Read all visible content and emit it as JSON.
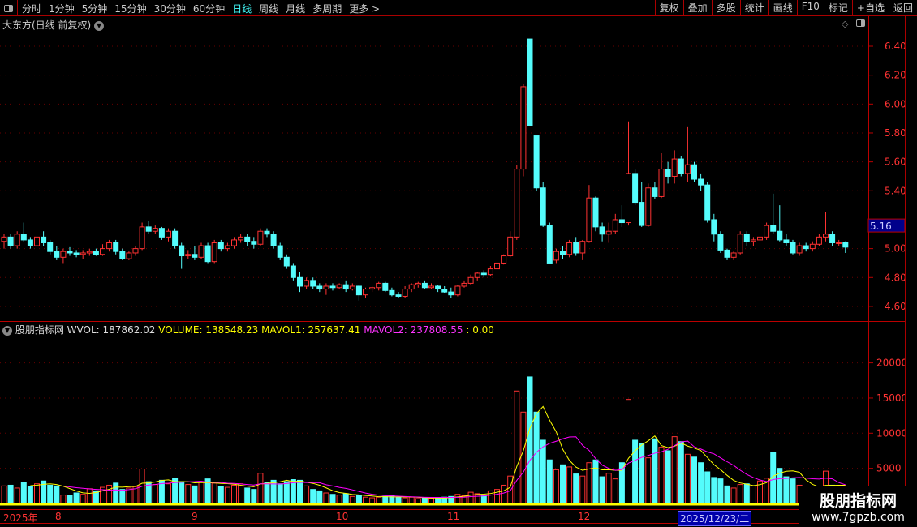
{
  "toolbar": {
    "periods": [
      "分时",
      "1分钟",
      "5分钟",
      "15分钟",
      "30分钟",
      "60分钟",
      "日线",
      "周线",
      "月线",
      "多周期",
      "更多 >"
    ],
    "active": "日线",
    "buttons": [
      "复权",
      "叠加",
      "多股",
      "统计",
      "画线",
      "F10",
      "标记",
      "+自选",
      "返回"
    ]
  },
  "chart_title": "大东方(日线 前复权)",
  "price_axis": {
    "ticks": [
      "6.40",
      "6.20",
      "6.00",
      "5.80",
      "5.60",
      "5.40",
      "5.00",
      "4.80",
      "4.60"
    ],
    "current": "5.16"
  },
  "indicator": {
    "name": "股朋指标网",
    "wvol": "WVOL: 187862.02",
    "volume": "VOLUME: 138548.23",
    "mavol1": "MAVOL1: 257637.41",
    "mavol2": "MAVOL2: 237808.55",
    "extra": ": 0.00"
  },
  "volume_axis": {
    "ticks": [
      "20000",
      "15000",
      "10000",
      "5000"
    ]
  },
  "x_axis": {
    "labels": [
      "2025年",
      "8",
      "9",
      "10",
      "11",
      "12"
    ],
    "cursor_date": "2025/12/23/二"
  },
  "watermark": {
    "line1": "股朋指标网",
    "line2": "www.7gpzb.com"
  },
  "colors": {
    "up": "#ff3232",
    "down": "#54fcfc",
    "mavol1": "#ffff00",
    "mavol2": "#ff00ff",
    "active_tab": "#44ffff"
  },
  "chart_data": {
    "type": "candlestick",
    "price_range": [
      4.6,
      6.4
    ],
    "volume_range": [
      0,
      20000
    ],
    "ohlcv": [
      [
        5.05,
        5.1,
        5.0,
        5.08,
        2500
      ],
      [
        5.08,
        5.1,
        5.0,
        5.02,
        2600
      ],
      [
        5.02,
        5.12,
        5.0,
        5.1,
        2200
      ],
      [
        5.1,
        5.18,
        5.05,
        5.06,
        3000
      ],
      [
        5.06,
        5.08,
        5.0,
        5.02,
        2400
      ],
      [
        5.02,
        5.09,
        5.0,
        5.08,
        2800
      ],
      [
        5.08,
        5.12,
        5.02,
        5.04,
        3200
      ],
      [
        5.04,
        5.06,
        4.96,
        4.98,
        2600
      ],
      [
        4.98,
        5.02,
        4.92,
        4.94,
        2500
      ],
      [
        4.94,
        5.0,
        4.9,
        4.98,
        1200
      ],
      [
        4.98,
        5.01,
        4.95,
        4.97,
        1100
      ],
      [
        4.97,
        4.99,
        4.94,
        4.96,
        1500
      ],
      [
        4.96,
        4.99,
        4.93,
        4.97,
        1300
      ],
      [
        4.97,
        5.0,
        4.95,
        4.98,
        2100
      ],
      [
        4.98,
        5.0,
        4.95,
        4.96,
        1800
      ],
      [
        4.96,
        5.03,
        4.95,
        5.0,
        2300
      ],
      [
        5.0,
        5.06,
        4.98,
        5.04,
        2600
      ],
      [
        5.04,
        5.06,
        4.96,
        4.98,
        2900
      ],
      [
        4.98,
        5.0,
        4.92,
        4.93,
        2000
      ],
      [
        4.93,
        4.98,
        4.92,
        4.97,
        2200
      ],
      [
        4.97,
        5.02,
        4.95,
        5.0,
        2400
      ],
      [
        5.0,
        5.18,
        4.99,
        5.15,
        4900
      ],
      [
        5.15,
        5.19,
        5.1,
        5.12,
        3100
      ],
      [
        5.12,
        5.16,
        5.1,
        5.14,
        2700
      ],
      [
        5.14,
        5.15,
        5.06,
        5.08,
        3300
      ],
      [
        5.08,
        5.14,
        5.05,
        5.12,
        2800
      ],
      [
        5.12,
        5.14,
        5.0,
        5.02,
        3600
      ],
      [
        5.02,
        5.04,
        4.86,
        4.95,
        3100
      ],
      [
        4.95,
        4.99,
        4.93,
        4.96,
        2700
      ],
      [
        4.96,
        5.02,
        4.92,
        4.94,
        2500
      ],
      [
        4.94,
        5.04,
        4.93,
        5.02,
        3000
      ],
      [
        5.02,
        5.04,
        4.9,
        4.91,
        3500
      ],
      [
        4.91,
        5.06,
        4.9,
        5.04,
        2900
      ],
      [
        5.04,
        5.06,
        4.98,
        5.0,
        2400
      ],
      [
        5.0,
        5.04,
        4.98,
        5.02,
        2300
      ],
      [
        5.02,
        5.08,
        5.0,
        5.06,
        2600
      ],
      [
        5.06,
        5.1,
        5.04,
        5.08,
        2800
      ],
      [
        5.08,
        5.1,
        5.02,
        5.05,
        2200
      ],
      [
        5.05,
        5.08,
        5.0,
        5.03,
        2000
      ],
      [
        5.03,
        5.14,
        5.02,
        5.12,
        4300
      ],
      [
        5.12,
        5.14,
        5.08,
        5.1,
        3000
      ],
      [
        5.1,
        5.12,
        5.0,
        5.02,
        3300
      ],
      [
        5.02,
        5.04,
        4.92,
        4.94,
        2800
      ],
      [
        4.94,
        4.96,
        4.86,
        4.88,
        3100
      ],
      [
        4.88,
        4.9,
        4.78,
        4.8,
        3400
      ],
      [
        4.8,
        4.84,
        4.7,
        4.74,
        3300
      ],
      [
        4.74,
        4.8,
        4.72,
        4.78,
        2500
      ],
      [
        4.78,
        4.8,
        4.72,
        4.74,
        2000
      ],
      [
        4.74,
        4.76,
        4.7,
        4.72,
        1800
      ],
      [
        4.72,
        4.76,
        4.68,
        4.74,
        1500
      ],
      [
        4.74,
        4.76,
        4.71,
        4.73,
        1300
      ],
      [
        4.73,
        4.76,
        4.72,
        4.75,
        1200
      ],
      [
        4.75,
        4.78,
        4.7,
        4.72,
        1400
      ],
      [
        4.72,
        4.76,
        4.71,
        4.74,
        1000
      ],
      [
        4.74,
        4.75,
        4.64,
        4.68,
        1200
      ],
      [
        4.68,
        4.73,
        4.66,
        4.72,
        900
      ],
      [
        4.72,
        4.74,
        4.7,
        4.73,
        800
      ],
      [
        4.73,
        4.77,
        4.71,
        4.76,
        900
      ],
      [
        4.76,
        4.77,
        4.7,
        4.71,
        1000
      ],
      [
        4.71,
        4.73,
        4.67,
        4.68,
        1100
      ],
      [
        4.68,
        4.7,
        4.66,
        4.67,
        900
      ],
      [
        4.67,
        4.74,
        4.66,
        4.72,
        800
      ],
      [
        4.72,
        4.76,
        4.7,
        4.75,
        900
      ],
      [
        4.75,
        4.77,
        4.73,
        4.76,
        700
      ],
      [
        4.76,
        4.78,
        4.72,
        4.73,
        800
      ],
      [
        4.73,
        4.76,
        4.72,
        4.74,
        700
      ],
      [
        4.74,
        4.75,
        4.7,
        4.72,
        800
      ],
      [
        4.72,
        4.74,
        4.69,
        4.7,
        900
      ],
      [
        4.7,
        4.73,
        4.66,
        4.68,
        1000
      ],
      [
        4.68,
        4.75,
        4.67,
        4.74,
        1300
      ],
      [
        4.74,
        4.78,
        4.73,
        4.76,
        1100
      ],
      [
        4.76,
        4.82,
        4.75,
        4.8,
        1600
      ],
      [
        4.8,
        4.84,
        4.78,
        4.83,
        1400
      ],
      [
        4.83,
        4.85,
        4.8,
        4.82,
        1200
      ],
      [
        4.82,
        4.88,
        4.81,
        4.86,
        1800
      ],
      [
        4.86,
        4.92,
        4.85,
        4.9,
        2000
      ],
      [
        4.9,
        4.96,
        4.89,
        4.95,
        2600
      ],
      [
        4.95,
        5.12,
        4.94,
        5.08,
        3900
      ],
      [
        5.08,
        5.58,
        5.06,
        5.55,
        16000
      ],
      [
        5.55,
        6.14,
        5.5,
        6.12,
        13000
      ],
      [
        6.45,
        6.45,
        5.85,
        5.85,
        18000
      ],
      [
        5.78,
        5.78,
        5.4,
        5.42,
        13000
      ],
      [
        5.42,
        5.46,
        5.15,
        5.16,
        9000
      ],
      [
        5.16,
        5.18,
        4.9,
        4.9,
        6200
      ],
      [
        4.92,
        5.0,
        4.9,
        4.98,
        4800
      ],
      [
        4.98,
        5.02,
        4.93,
        4.96,
        5500
      ],
      [
        4.96,
        5.06,
        4.94,
        5.04,
        5200
      ],
      [
        5.04,
        5.08,
        4.95,
        4.97,
        4200
      ],
      [
        4.97,
        5.06,
        4.92,
        5.05,
        3900
      ],
      [
        5.05,
        5.44,
        5.04,
        5.35,
        5800
      ],
      [
        5.35,
        5.36,
        5.12,
        5.15,
        6200
      ],
      [
        5.15,
        5.18,
        5.05,
        5.1,
        3800
      ],
      [
        5.1,
        5.18,
        5.04,
        5.12,
        4300
      ],
      [
        5.12,
        5.24,
        5.1,
        5.2,
        3500
      ],
      [
        5.2,
        5.3,
        5.15,
        5.18,
        5800
      ],
      [
        5.18,
        5.88,
        5.16,
        5.52,
        14800
      ],
      [
        5.52,
        5.55,
        5.3,
        5.32,
        9000
      ],
      [
        5.32,
        5.46,
        5.15,
        5.16,
        8500
      ],
      [
        5.16,
        5.45,
        5.15,
        5.42,
        6500
      ],
      [
        5.42,
        5.46,
        5.34,
        5.36,
        9200
      ],
      [
        5.36,
        5.66,
        5.35,
        5.55,
        8000
      ],
      [
        5.55,
        5.6,
        5.45,
        5.5,
        7500
      ],
      [
        5.5,
        5.68,
        5.45,
        5.62,
        9500
      ],
      [
        5.62,
        5.64,
        5.5,
        5.52,
        8800
      ],
      [
        5.52,
        5.84,
        5.46,
        5.58,
        7000
      ],
      [
        5.58,
        5.6,
        5.46,
        5.48,
        6600
      ],
      [
        5.48,
        5.52,
        5.4,
        5.44,
        5800
      ],
      [
        5.44,
        5.46,
        5.18,
        5.2,
        4500
      ],
      [
        5.2,
        5.24,
        5.05,
        5.1,
        3700
      ],
      [
        5.1,
        5.12,
        4.97,
        4.99,
        3500
      ],
      [
        4.99,
        5.0,
        4.92,
        4.94,
        2500
      ],
      [
        4.94,
        4.98,
        4.92,
        4.97,
        2200
      ],
      [
        4.97,
        5.12,
        4.96,
        5.1,
        2700
      ],
      [
        5.1,
        5.12,
        5.02,
        5.05,
        2800
      ],
      [
        5.05,
        5.08,
        5.02,
        5.06,
        2500
      ],
      [
        5.06,
        5.1,
        5.02,
        5.08,
        3200
      ],
      [
        5.08,
        5.18,
        5.06,
        5.16,
        3600
      ],
      [
        5.16,
        5.38,
        5.1,
        5.12,
        7300
      ],
      [
        5.12,
        5.3,
        5.05,
        5.06,
        5000
      ],
      [
        5.06,
        5.1,
        5.02,
        5.04,
        3800
      ],
      [
        5.04,
        5.06,
        4.96,
        4.97,
        3500
      ],
      [
        4.97,
        5.04,
        4.95,
        5.02,
        2600
      ],
      [
        5.02,
        5.04,
        4.98,
        5.0,
        1900
      ],
      [
        5.0,
        5.05,
        4.98,
        5.03,
        1800
      ],
      [
        5.03,
        5.1,
        5.02,
        5.08,
        2000
      ],
      [
        5.08,
        5.25,
        5.05,
        5.1,
        4600
      ],
      [
        5.1,
        5.12,
        5.02,
        5.04,
        2600
      ],
      [
        5.04,
        5.06,
        5.02,
        5.04,
        2000
      ],
      [
        5.04,
        5.05,
        4.97,
        5.01,
        1800
      ]
    ]
  }
}
